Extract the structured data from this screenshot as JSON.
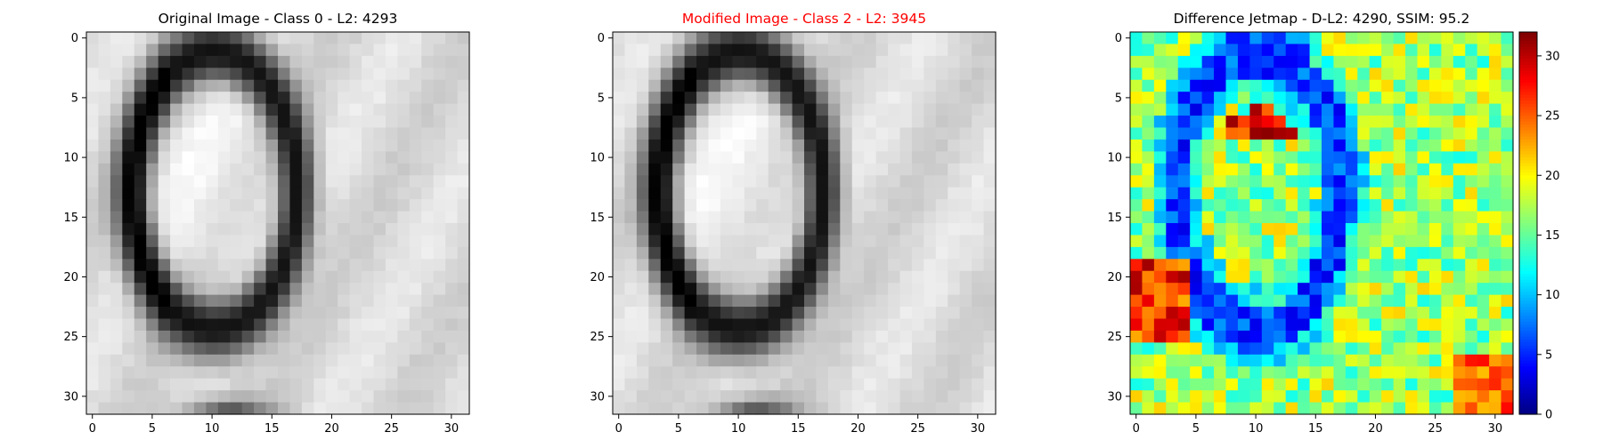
{
  "colors": {
    "title_default": "#000000",
    "title_highlight": "#ff0000",
    "cmap": "jet",
    "gray_cmap": "gray"
  },
  "chart_data": [
    {
      "type": "heatmap",
      "title": "Original Image - Class 0 - L2: 4293",
      "title_color": "#000000",
      "colormap": "gray",
      "grid_size": [
        32,
        32
      ],
      "xlim": [
        -0.5,
        31.5
      ],
      "ylim": [
        31.5,
        -0.5
      ],
      "x_ticks": [
        0,
        5,
        10,
        15,
        20,
        25,
        30
      ],
      "y_ticks": [
        0,
        5,
        10,
        15,
        20,
        25,
        30
      ],
      "content": "handwritten digit 0 (grayscale, dark ring on light background)"
    },
    {
      "type": "heatmap",
      "title": "Modified Image - Class 2 - L2: 3945",
      "title_color": "#ff0000",
      "colormap": "gray",
      "grid_size": [
        32,
        32
      ],
      "xlim": [
        -0.5,
        31.5
      ],
      "ylim": [
        31.5,
        -0.5
      ],
      "x_ticks": [
        0,
        5,
        10,
        15,
        20,
        25,
        30
      ],
      "y_ticks": [
        0,
        5,
        10,
        15,
        20,
        25,
        30
      ],
      "content": "slightly perturbed version of the original digit 0"
    },
    {
      "type": "heatmap",
      "title": "Difference Jetmap - D-L2: 4290, SSIM: 95.2",
      "title_color": "#000000",
      "colormap": "jet",
      "grid_size": [
        32,
        32
      ],
      "xlim": [
        -0.5,
        31.5
      ],
      "ylim": [
        31.5,
        -0.5
      ],
      "x_ticks": [
        0,
        5,
        10,
        15,
        20,
        25,
        30
      ],
      "y_ticks": [
        0,
        5,
        10,
        15,
        20,
        25,
        30
      ],
      "colorbar": {
        "min": 0,
        "max": 32,
        "ticks": [
          0,
          5,
          10,
          15,
          20,
          25,
          30
        ]
      }
    }
  ]
}
